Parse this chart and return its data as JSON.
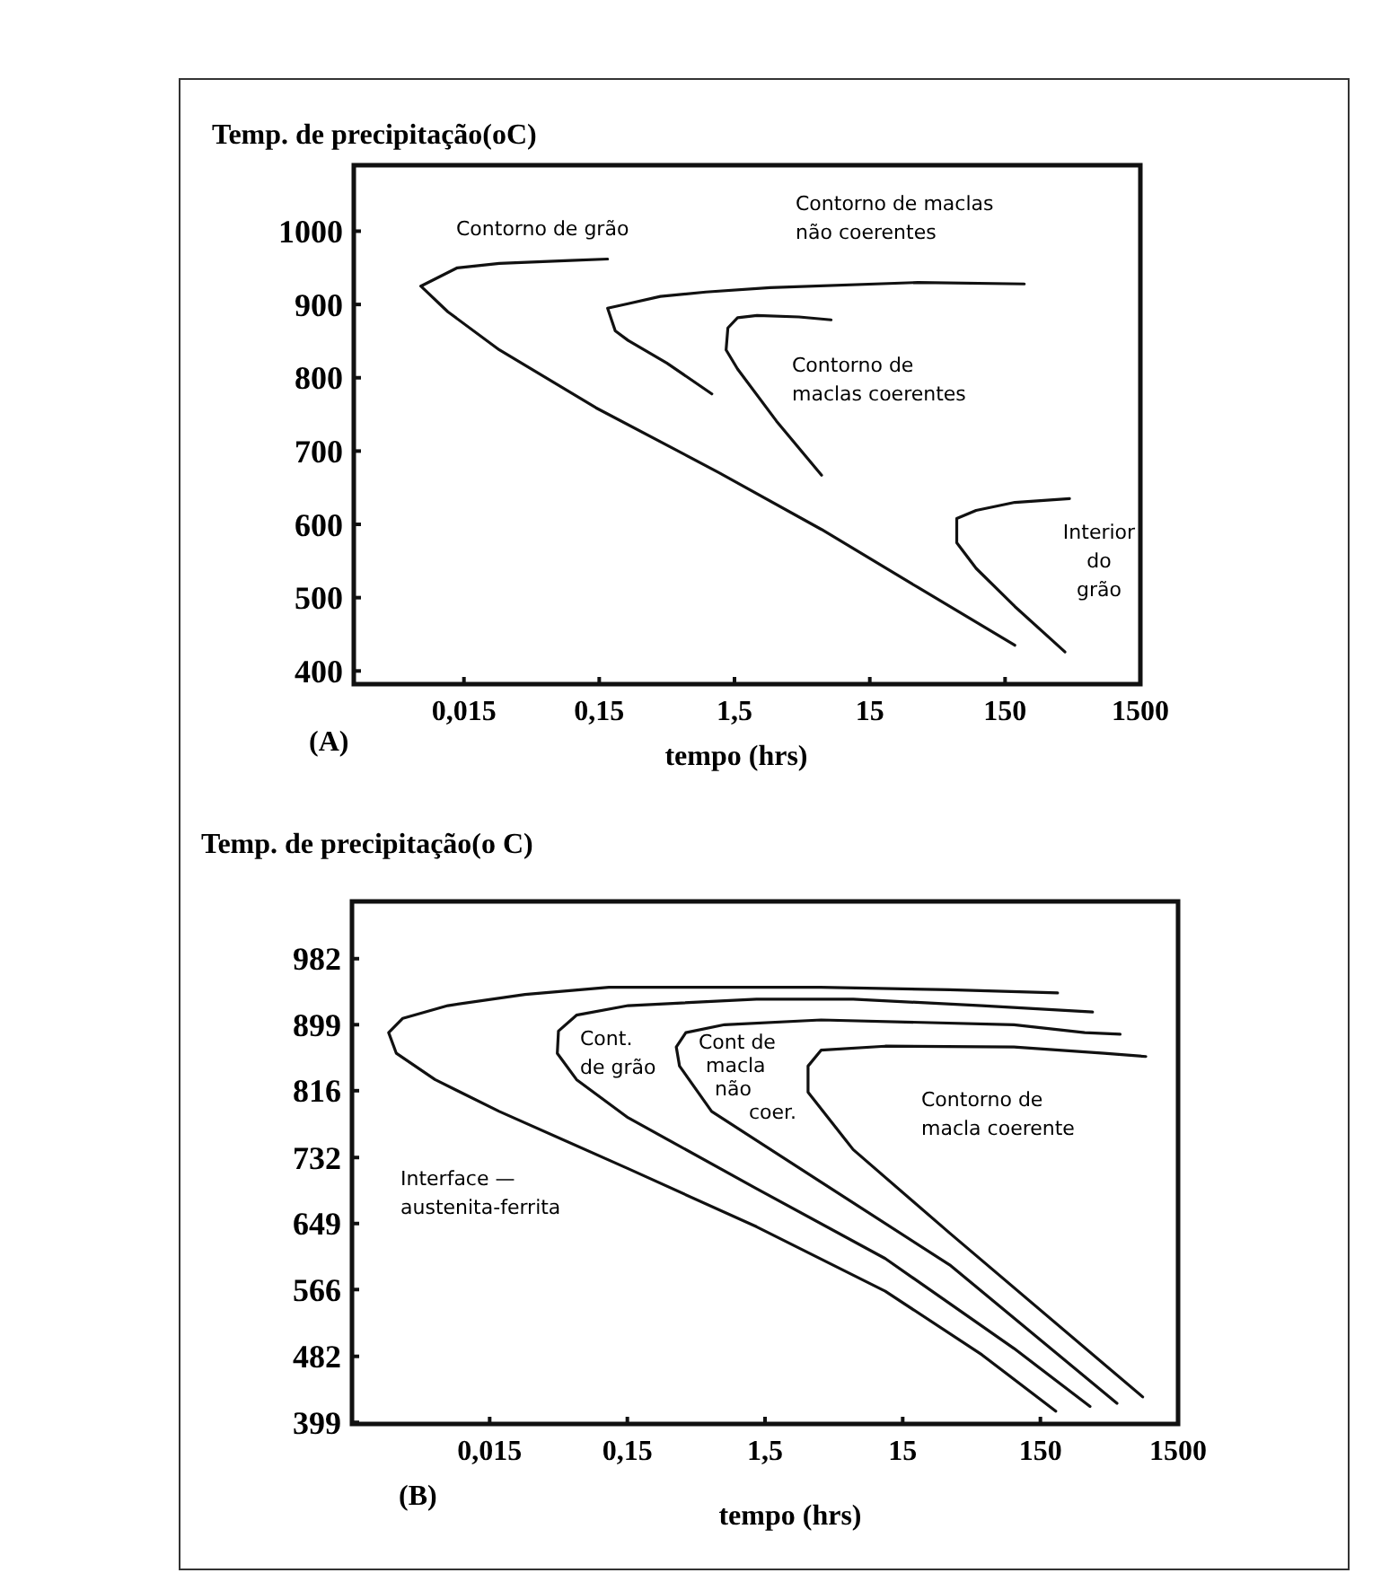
{
  "chart_data": [
    {
      "type": "line",
      "title": "(A)",
      "xlabel": "tempo (hrs)",
      "ylabel": "Temp. de precipitação(oC)",
      "log": "x",
      "xlim": [
        0.0023,
        1500
      ],
      "xticks": [
        {
          "value": 0.015,
          "label": "0,015"
        },
        {
          "value": 0.15,
          "label": "0,15"
        },
        {
          "value": 1.5,
          "label": "1,5"
        },
        15,
        150,
        1500
      ],
      "ylim": [
        382,
        1090
      ],
      "yticks": [
        400,
        500,
        600,
        700,
        800,
        900,
        1000
      ],
      "series": [
        {
          "color": "#111111",
          "x": [
            0.173,
            0.0916,
            0.0274,
            0.0134,
            0.0072,
            0.0114,
            0.0274,
            0.142,
            1.14,
            6.6,
            34,
            177
          ],
          "values": [
            962,
            960,
            956,
            950,
            925,
            890,
            838,
            759,
            671,
            593,
            514,
            435
          ]
        },
        {
          "color": "#111111",
          "x": [
            208,
            34,
            2.74,
            0.92,
            0.425,
            0.245,
            0.173,
            0.197,
            0.245,
            0.474,
            1.02
          ],
          "values": [
            928,
            930,
            923,
            917,
            911,
            901,
            895,
            864,
            851,
            820,
            778
          ]
        },
        {
          "color": "#111111",
          "x": [
            7.76,
            4.49,
            2.2,
            1.58,
            1.34,
            1.3,
            1.58,
            3.06,
            6.6
          ],
          "values": [
            879,
            883,
            885,
            882,
            868,
            838,
            812,
            741,
            667
          ]
        },
        {
          "color": "#111111",
          "x": [
            449,
            177,
            91.6,
            65.9,
            65.9,
            91.6,
            177,
            416
          ],
          "values": [
            635,
            630,
            619,
            608,
            575,
            540,
            488,
            426
          ]
        }
      ],
      "annotations": [
        "Contorno de grão",
        "Contorno de maclas\nnão coerentes",
        "Contorno de\nmaclas coerentes",
        "Interior\ndo\ngrão"
      ]
    },
    {
      "type": "line",
      "title": "(B)",
      "xlabel": "tempo (hrs)",
      "ylabel": "Temp. de precipitação(o C)",
      "log": "x",
      "xlim": [
        0.0015,
        1500
      ],
      "xticks": [
        {
          "value": 0.015,
          "label": "0,015"
        },
        {
          "value": 0.15,
          "label": "0,15"
        },
        {
          "value": 1.5,
          "label": "1,5"
        },
        15,
        150,
        1500
      ],
      "ylim": [
        397,
        1054
      ],
      "yticks": [
        399,
        482,
        566,
        649,
        732,
        816,
        899,
        982
      ],
      "series": [
        {
          "color": "#111111",
          "x": [
            200,
            32.9,
            3.83,
            0.11,
            0.0271,
            0.00745,
            0.00351,
            0.00277,
            0.00315,
            0.00601,
            0.0176,
            0.152,
            1.3,
            11.2,
            56.4,
            194
          ],
          "values": [
            939,
            943,
            946,
            946,
            937,
            923,
            907,
            889,
            863,
            830,
            790,
            718,
            645,
            564,
            484,
            413
          ]
        },
        {
          "color": "#111111",
          "x": [
            359,
            56.4,
            6.55,
            1.3,
            0.152,
            0.0641,
            0.0474,
            0.0465,
            0.0641,
            0.152,
            1.3,
            11.2,
            96.4,
            344
          ],
          "values": [
            915,
            923,
            931,
            931,
            923,
            911,
            891,
            863,
            830,
            782,
            693,
            605,
            492,
            419
          ]
        },
        {
          "color": "#111111",
          "x": [
            569,
            315,
            96.4,
            3.83,
            0.762,
            0.399,
            0.34,
            0.359,
            0.614,
            3.83,
            32.9,
            540
          ],
          "values": [
            887,
            889,
            899,
            905,
            899,
            889,
            871,
            847,
            790,
            701,
            597,
            423
          ]
        },
        {
          "color": "#111111",
          "x": [
            875,
            436,
            96.4,
            11.2,
            3.83,
            3.08,
            3.08,
            6.55,
            32.9,
            830
          ],
          "values": [
            859,
            863,
            871,
            872,
            867,
            847,
            814,
            742,
            637,
            431
          ]
        }
      ],
      "annotations": [
        "Cont.\nde grão",
        "Cont de\nmacla\nnão\ncoer.",
        "Contorno de\nmacla coerente",
        "Interface —\naustenita-ferrita"
      ]
    }
  ]
}
